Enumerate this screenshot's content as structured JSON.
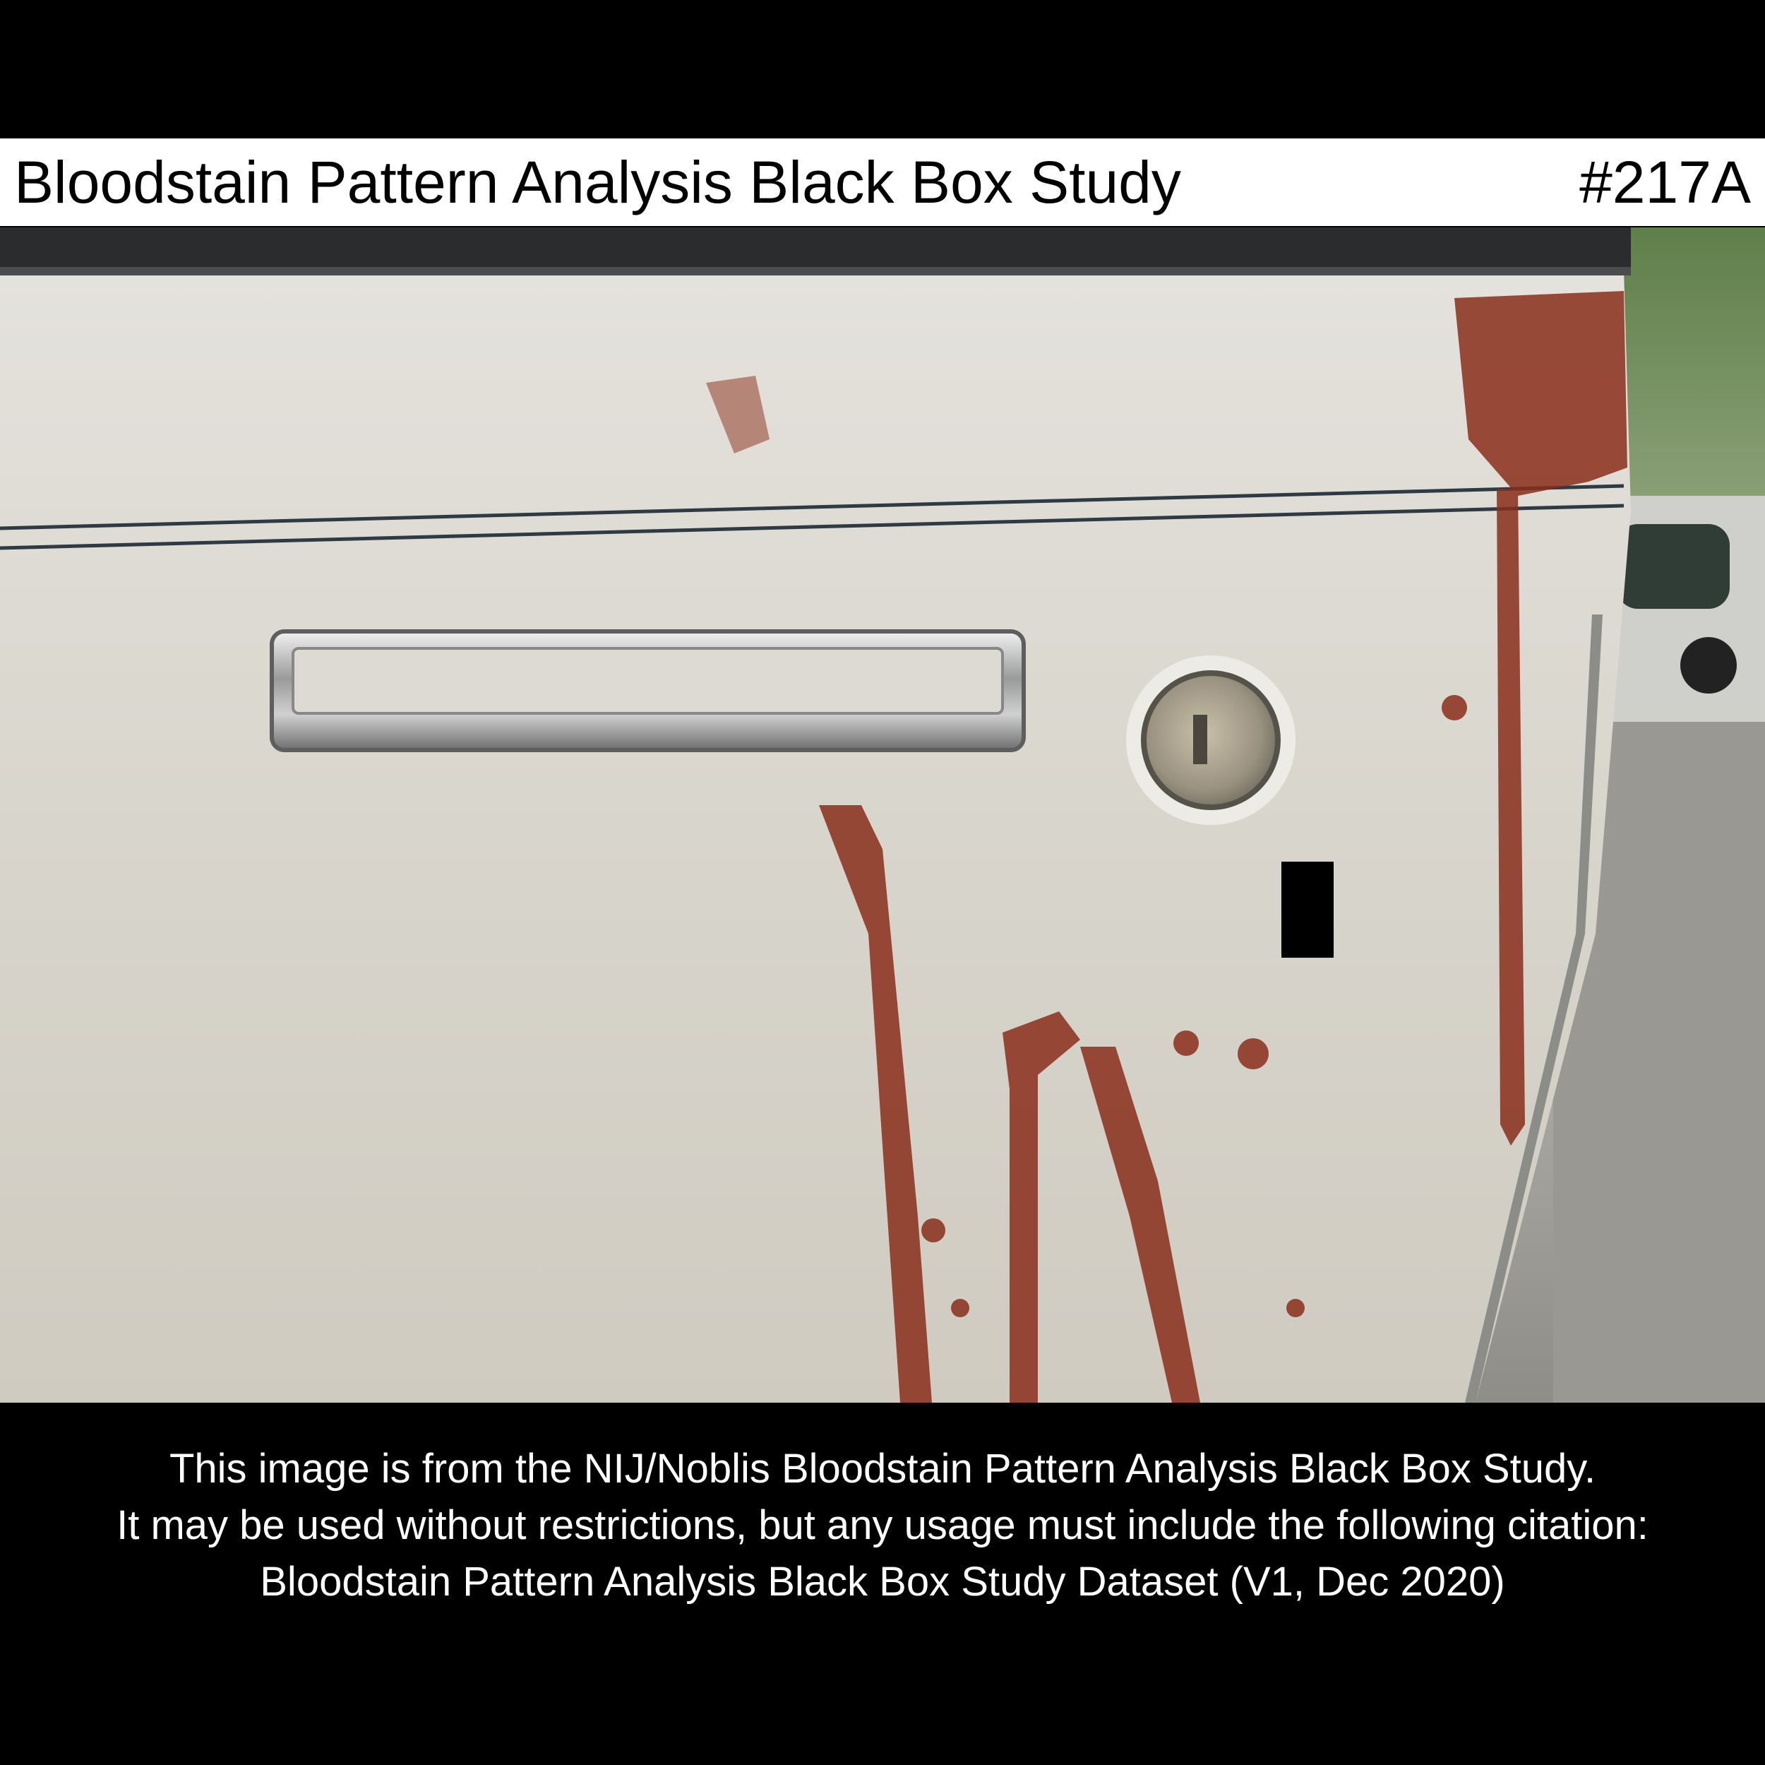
{
  "header": {
    "title": "Bloodstain Pattern Analysis Black Box Study",
    "case_id": "#217A"
  },
  "photo": {
    "subject": "car-door-with-bloodstains",
    "icon": "photo-icon"
  },
  "caption": {
    "line1": "This image is from the NIJ/Noblis Bloodstain Pattern Analysis Black Box Study.",
    "line2": "It may be used without restrictions, but any usage must include the following citation:",
    "line3": "Bloodstain Pattern Analysis Black Box Study Dataset (V1, Dec 2020)"
  },
  "colors": {
    "background": "#000000",
    "title_bar": "#ffffff",
    "blood": "#8a2e1a",
    "door_paint": "#d9d5cc"
  }
}
